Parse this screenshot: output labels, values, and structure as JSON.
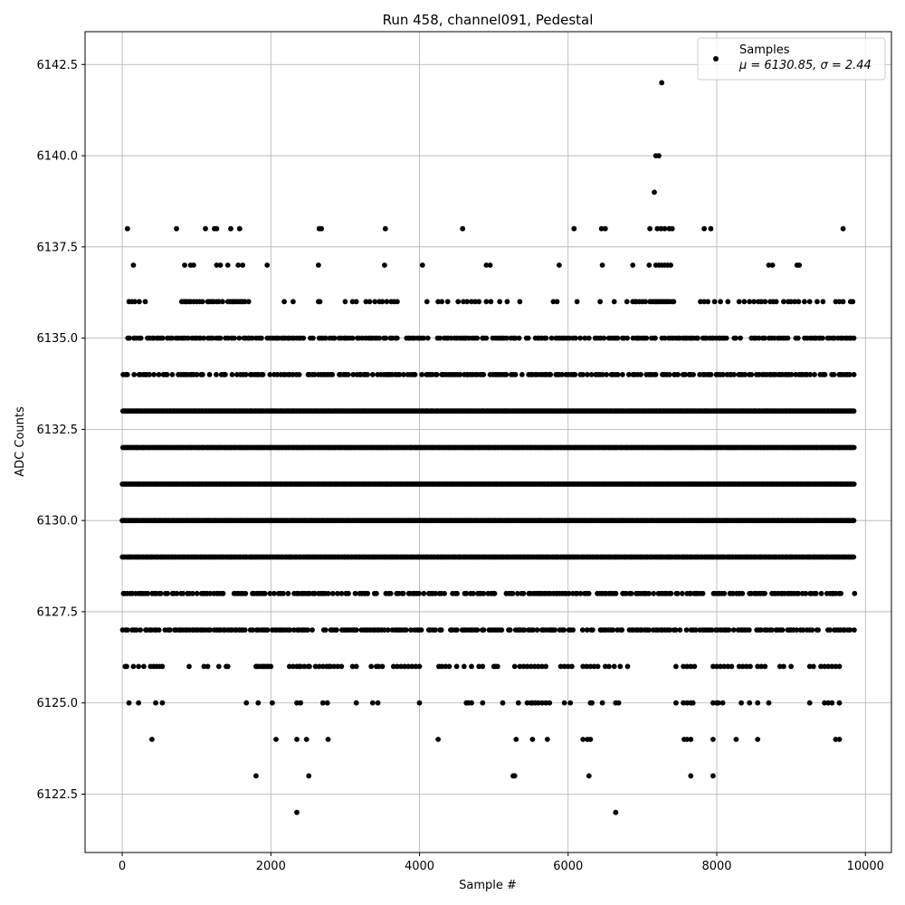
{
  "chart_data": {
    "type": "scatter",
    "title": "Run 458, channel091, Pedestal",
    "xlabel": "Sample #",
    "ylabel": "ADC Counts",
    "xlim": [
      -500,
      10350
    ],
    "ylim": [
      6120.9,
      6143.4
    ],
    "grid": true,
    "xticks": [
      0,
      2000,
      4000,
      6000,
      8000,
      10000
    ],
    "xtick_labels": [
      "0",
      "2000",
      "4000",
      "6000",
      "8000",
      "10000"
    ],
    "yticks": [
      6122.5,
      6125.0,
      6127.5,
      6130.0,
      6132.5,
      6135.0,
      6137.5,
      6140.0,
      6142.5
    ],
    "ytick_labels": [
      "6122.5",
      "6125.0",
      "6127.5",
      "6130.0",
      "6132.5",
      "6135.0",
      "6137.5",
      "6140.0",
      "6142.5"
    ],
    "marker_color": "#000000",
    "legend": {
      "placement": "top-right",
      "entries": [
        {
          "label": "Samples",
          "sublabel": "μ = 6130.85, σ = 2.44"
        }
      ]
    },
    "series": [
      {
        "name": "Samples",
        "x_range": [
          0,
          9850
        ],
        "mean": 6130.85,
        "sigma": 2.44,
        "dense_levels": [
          6127,
          6128,
          6129,
          6130,
          6131,
          6132,
          6133,
          6134,
          6135
        ],
        "medium_levels": [
          {
            "y": 6136,
            "x": [
              90,
              130,
              170,
              230,
              310,
              800,
              830,
              850,
              870,
              900,
              920,
              960,
              1000,
              1040,
              1080,
              1150,
              1170,
              1200,
              1230,
              1270,
              1300,
              1350,
              1420,
              1450,
              1480,
              1500,
              1520,
              1550,
              1580,
              1600,
              1620,
              1650,
              1700,
              2180,
              2300,
              2640,
              2660,
              3000,
              3100,
              3150,
              3280,
              3330,
              3400,
              3460,
              3500,
              3560,
              3620,
              3660,
              3700,
              4100,
              4250,
              4300,
              4380,
              4520,
              4590,
              4640,
              4700,
              4750,
              4800,
              4900,
              4960,
              5080,
              5180,
              5350,
              5800,
              5850,
              6120,
              6430,
              6620,
              6790,
              6870,
              6900,
              6920,
              6960,
              7000,
              7040,
              7100,
              7130,
              7160,
              7180,
              7200,
              7220,
              7250,
              7280,
              7300,
              7330,
              7360,
              7400,
              7420,
              7780,
              7830,
              7880,
              7970,
              8050,
              8150,
              8300,
              8370,
              8440,
              8500,
              8560,
              8600,
              8650,
              8720,
              8760,
              8800,
              8900,
              8960,
              9000,
              9050,
              9100,
              9180,
              9250,
              9350,
              9430,
              9600,
              9650,
              9700,
              9800,
              9830
            ]
          },
          {
            "y": 6126,
            "x": [
              40,
              60,
              150,
              220,
              290,
              380,
              420,
              460,
              500,
              540,
              900,
              1100,
              1150,
              1300,
              1400,
              1420,
              1800,
              1820,
              1850,
              1880,
              1900,
              1920,
              1950,
              1970,
              2000,
              2250,
              2300,
              2350,
              2380,
              2400,
              2450,
              2500,
              2520,
              2600,
              2650,
              2700,
              2750,
              2780,
              2800,
              2850,
              2900,
              2950,
              3100,
              3150,
              3350,
              3420,
              3450,
              3500,
              3650,
              3700,
              3750,
              3800,
              3850,
              3900,
              3950,
              4000,
              4260,
              4300,
              4350,
              4400,
              4500,
              4600,
              4700,
              4800,
              4850,
              5000,
              5020,
              5050,
              5280,
              5350,
              5400,
              5450,
              5500,
              5550,
              5600,
              5650,
              5700,
              5900,
              5950,
              6000,
              6050,
              6200,
              6250,
              6300,
              6350,
              6400,
              6500,
              6550,
              6620,
              6700,
              6800,
              7450,
              7550,
              7600,
              7650,
              7700,
              7950,
              8000,
              8050,
              8100,
              8150,
              8200,
              8300,
              8350,
              8400,
              8450,
              8550,
              8600,
              8650,
              8850,
              8900,
              9000,
              9250,
              9300,
              9400,
              9450,
              9500,
              9550,
              9600,
              9650
            ]
          },
          {
            "y": 6125,
            "x": [
              90,
              220,
              450,
              540,
              1670,
              1830,
              2020,
              2350,
              2400,
              2700,
              2760,
              3150,
              3370,
              3440,
              4000,
              4630,
              4660,
              4700,
              4850,
              5120,
              5330,
              5450,
              5500,
              5520,
              5560,
              5600,
              5650,
              5700,
              5750,
              5950,
              6030,
              6300,
              6320,
              6460,
              6640,
              6680,
              7450,
              7550,
              7600,
              7650,
              7680,
              7950,
              8000,
              8020,
              8080,
              8330,
              8440,
              8550,
              8700,
              9250,
              9450,
              9500,
              9550,
              9650
            ]
          }
        ],
        "sparse_points": [
          {
            "x": 70,
            "y": 6138
          },
          {
            "x": 730,
            "y": 6138
          },
          {
            "x": 1120,
            "y": 6138
          },
          {
            "x": 1240,
            "y": 6138
          },
          {
            "x": 1270,
            "y": 6138
          },
          {
            "x": 1460,
            "y": 6138
          },
          {
            "x": 1580,
            "y": 6138
          },
          {
            "x": 2650,
            "y": 6138
          },
          {
            "x": 2680,
            "y": 6138
          },
          {
            "x": 3540,
            "y": 6138
          },
          {
            "x": 4580,
            "y": 6138
          },
          {
            "x": 6080,
            "y": 6138
          },
          {
            "x": 6450,
            "y": 6138
          },
          {
            "x": 6500,
            "y": 6138
          },
          {
            "x": 7100,
            "y": 6138
          },
          {
            "x": 7200,
            "y": 6138
          },
          {
            "x": 7250,
            "y": 6138
          },
          {
            "x": 7300,
            "y": 6138
          },
          {
            "x": 7360,
            "y": 6138
          },
          {
            "x": 7400,
            "y": 6138
          },
          {
            "x": 7830,
            "y": 6138
          },
          {
            "x": 7920,
            "y": 6138
          },
          {
            "x": 9700,
            "y": 6138
          },
          {
            "x": 150,
            "y": 6137
          },
          {
            "x": 840,
            "y": 6137
          },
          {
            "x": 920,
            "y": 6137
          },
          {
            "x": 960,
            "y": 6137
          },
          {
            "x": 1270,
            "y": 6137
          },
          {
            "x": 1320,
            "y": 6137
          },
          {
            "x": 1420,
            "y": 6137
          },
          {
            "x": 1560,
            "y": 6137
          },
          {
            "x": 1620,
            "y": 6137
          },
          {
            "x": 1950,
            "y": 6137
          },
          {
            "x": 2640,
            "y": 6137
          },
          {
            "x": 3530,
            "y": 6137
          },
          {
            "x": 4040,
            "y": 6137
          },
          {
            "x": 4900,
            "y": 6137
          },
          {
            "x": 4950,
            "y": 6137
          },
          {
            "x": 5880,
            "y": 6137
          },
          {
            "x": 6460,
            "y": 6137
          },
          {
            "x": 6870,
            "y": 6137
          },
          {
            "x": 7090,
            "y": 6137
          },
          {
            "x": 7180,
            "y": 6137
          },
          {
            "x": 7220,
            "y": 6137
          },
          {
            "x": 7260,
            "y": 6137
          },
          {
            "x": 7300,
            "y": 6137
          },
          {
            "x": 7340,
            "y": 6137
          },
          {
            "x": 7380,
            "y": 6137
          },
          {
            "x": 8700,
            "y": 6137
          },
          {
            "x": 8750,
            "y": 6137
          },
          {
            "x": 9080,
            "y": 6137
          },
          {
            "x": 9110,
            "y": 6137
          },
          {
            "x": 7260,
            "y": 6142
          },
          {
            "x": 7180,
            "y": 6140
          },
          {
            "x": 7220,
            "y": 6140
          },
          {
            "x": 7160,
            "y": 6139
          },
          {
            "x": 400,
            "y": 6124
          },
          {
            "x": 2070,
            "y": 6124
          },
          {
            "x": 2350,
            "y": 6124
          },
          {
            "x": 2480,
            "y": 6124
          },
          {
            "x": 2770,
            "y": 6124
          },
          {
            "x": 4250,
            "y": 6124
          },
          {
            "x": 5300,
            "y": 6124
          },
          {
            "x": 5520,
            "y": 6124
          },
          {
            "x": 5720,
            "y": 6124
          },
          {
            "x": 6200,
            "y": 6124
          },
          {
            "x": 6260,
            "y": 6124
          },
          {
            "x": 6300,
            "y": 6124
          },
          {
            "x": 7560,
            "y": 6124
          },
          {
            "x": 7600,
            "y": 6124
          },
          {
            "x": 7650,
            "y": 6124
          },
          {
            "x": 7950,
            "y": 6124
          },
          {
            "x": 8260,
            "y": 6124
          },
          {
            "x": 8550,
            "y": 6124
          },
          {
            "x": 9600,
            "y": 6124
          },
          {
            "x": 9650,
            "y": 6124
          },
          {
            "x": 1800,
            "y": 6123
          },
          {
            "x": 2510,
            "y": 6123
          },
          {
            "x": 5260,
            "y": 6123
          },
          {
            "x": 5280,
            "y": 6123
          },
          {
            "x": 6280,
            "y": 6123
          },
          {
            "x": 7650,
            "y": 6123
          },
          {
            "x": 7950,
            "y": 6123
          },
          {
            "x": 2350,
            "y": 6122
          },
          {
            "x": 6640,
            "y": 6122
          }
        ]
      }
    ]
  }
}
